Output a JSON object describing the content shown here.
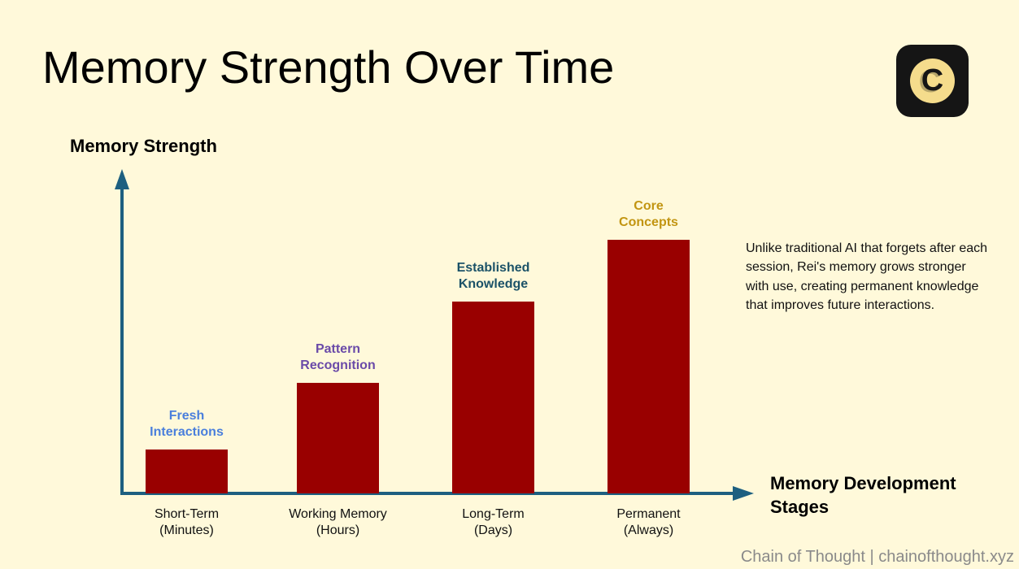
{
  "slide": {
    "title": "Memory Strength Over Time",
    "description": "Unlike traditional AI that forgets after each session, Rei's memory grows stronger with use, creating permanent knowledge that improves future interactions.",
    "footer": "Chain of Thought | chainofthought.xyz",
    "logo_letter": "C"
  },
  "colors": {
    "background": "#fff9da",
    "bar": "#990000",
    "axis": "#1d5f80"
  },
  "chart_data": {
    "type": "bar",
    "title": "Memory Strength Over Time",
    "ylabel": "Memory Strength",
    "xlabel": "Memory Development Stages",
    "ylim": [
      0,
      100
    ],
    "grid": false,
    "categories": [
      {
        "line1": "Short-Term",
        "line2": "(Minutes)"
      },
      {
        "line1": "Working Memory",
        "line2": "(Hours)"
      },
      {
        "line1": "Long-Term",
        "line2": "(Days)"
      },
      {
        "line1": "Permanent",
        "line2": "(Always)"
      }
    ],
    "values": [
      13.5,
      34,
      59,
      78
    ],
    "annotations": [
      {
        "line1": "Fresh",
        "line2": "Interactions",
        "color": "#4a7fdc"
      },
      {
        "line1": "Pattern",
        "line2": "Recognition",
        "color": "#6a4aa8"
      },
      {
        "line1": "Established",
        "line2": "Knowledge",
        "color": "#1b5268"
      },
      {
        "line1": "Core",
        "line2": "Concepts",
        "color": "#c29512"
      }
    ]
  }
}
